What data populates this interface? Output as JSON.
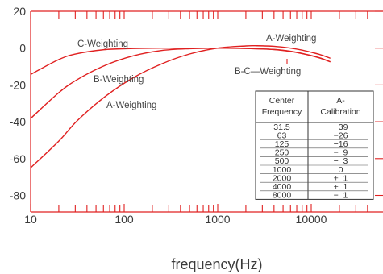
{
  "chart_data": {
    "type": "line",
    "xlabel": "frequency(Hz)",
    "x_scale": "log",
    "xlim": [
      10,
      40000
    ],
    "ylim": [
      -100,
      20
    ],
    "x_ticks": [
      {
        "value": 10,
        "label": "10"
      },
      {
        "value": 100,
        "label": "100"
      },
      {
        "value": 1000,
        "label": "1000"
      },
      {
        "value": 10000,
        "label": "10000"
      }
    ],
    "y_ticks": [
      {
        "value": 20,
        "label": "20"
      },
      {
        "value": 0,
        "label": "0"
      },
      {
        "value": -20,
        "label": "-20"
      },
      {
        "value": -40,
        "label": "-40"
      },
      {
        "value": -60,
        "label": "-60"
      },
      {
        "value": -80,
        "label": "-80"
      }
    ],
    "line_color": "#e02020",
    "series": [
      {
        "name": "C-Weighting",
        "x": [
          10,
          20,
          31.5,
          63,
          125,
          250,
          500,
          1000,
          2000,
          4000,
          6000,
          8000,
          12000,
          16000
        ],
        "y": [
          -14.3,
          -6.2,
          -3.0,
          -0.8,
          -0.2,
          0.0,
          0.0,
          0.0,
          -0.2,
          -0.8,
          -1.8,
          -3.0,
          -5.2,
          -7.5
        ]
      },
      {
        "name": "B-Weighting",
        "x": [
          10,
          20,
          31.5,
          63,
          125,
          250,
          500,
          1000,
          2000,
          4000,
          6000,
          8000,
          12000,
          16000
        ],
        "y": [
          -38.2,
          -24.2,
          -17.1,
          -9.3,
          -4.2,
          -1.3,
          -0.3,
          0.0,
          -0.1,
          -0.7,
          -1.7,
          -2.9,
          -5.1,
          -7.4
        ]
      },
      {
        "name": "A-Weighting",
        "x": [
          10,
          20,
          31.5,
          63,
          125,
          250,
          500,
          1000,
          2000,
          2500,
          4000,
          6000,
          8000,
          12000,
          16000
        ],
        "y": [
          -65,
          -50.5,
          -39.4,
          -26.2,
          -16.1,
          -8.6,
          -3.2,
          0.0,
          1.2,
          1.3,
          1.0,
          0.0,
          -1.1,
          -3.3,
          -5.5
        ]
      }
    ],
    "curve_labels": [
      {
        "id": "c-top",
        "text": "C-Weighting"
      },
      {
        "id": "a-top",
        "text": "A-Weighting"
      },
      {
        "id": "bc-right",
        "text": "B-C—Weighting"
      },
      {
        "id": "b-left",
        "text": "B-Weighting"
      },
      {
        "id": "a-left",
        "text": "A-Weighting"
      }
    ],
    "table": {
      "headers": [
        [
          "Center",
          "Frequency"
        ],
        [
          "A-",
          "Calibration"
        ]
      ],
      "rows": [
        [
          "31.5",
          "−39"
        ],
        [
          "63",
          "−26"
        ],
        [
          "125",
          "−16"
        ],
        [
          "250",
          "−  9"
        ],
        [
          "500",
          "−  3"
        ],
        [
          "1000",
          "0"
        ],
        [
          "2000",
          "+  1"
        ],
        [
          "4000",
          "+  1"
        ],
        [
          "8000",
          "−  1"
        ]
      ]
    }
  }
}
